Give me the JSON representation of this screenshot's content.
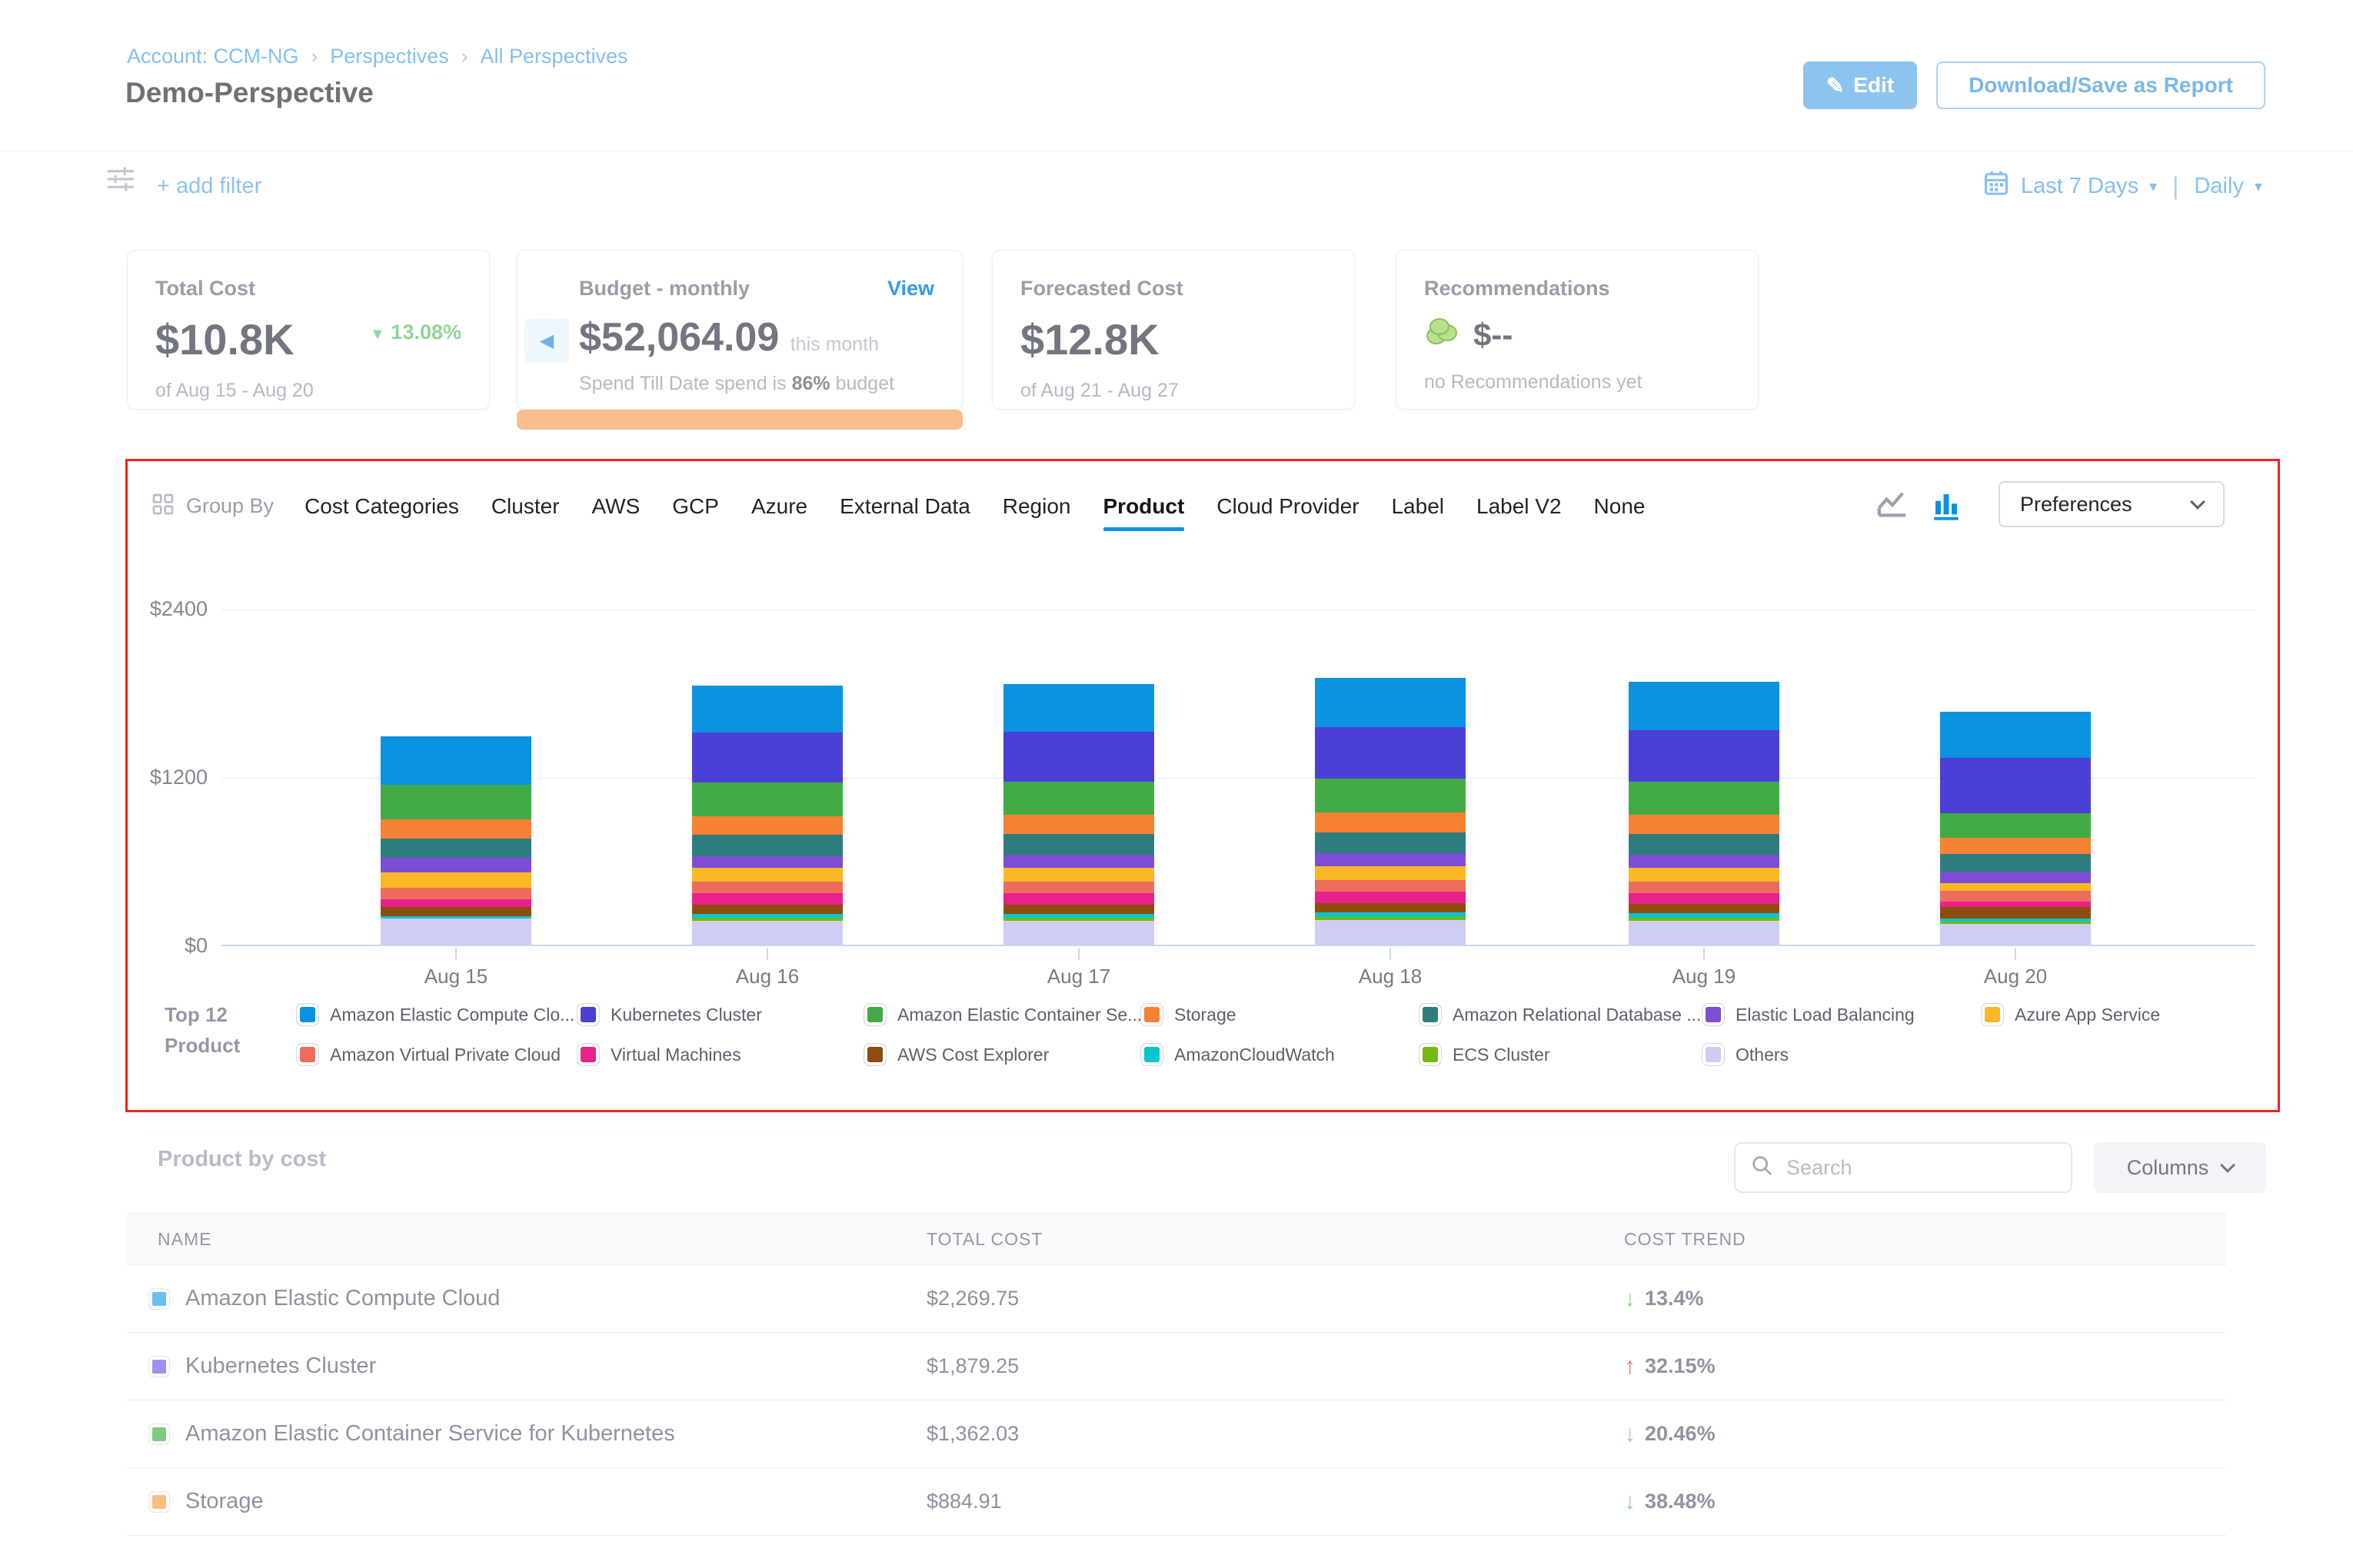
{
  "header": {
    "breadcrumb": [
      "Account: CCM-NG",
      "Perspectives",
      "All Perspectives"
    ],
    "title": "Demo-Perspective",
    "edit_label": "Edit",
    "download_label": "Download/Save as Report"
  },
  "filter_bar": {
    "add_filter_label": "+ add filter",
    "date_range_label": "Last 7 Days",
    "granularity_label": "Daily"
  },
  "summary_cards": {
    "total_cost": {
      "label": "Total Cost",
      "value": "$10.8K",
      "trend_direction": "down",
      "trend_value": "13.08%",
      "period": "of Aug 15 - Aug 20"
    },
    "budget": {
      "label": "Budget - monthly",
      "action_label": "View",
      "value": "$52,064.09",
      "value_suffix": "this month",
      "detail_prefix": "Spend Till Date spend is",
      "detail_percent": "86%",
      "detail_suffix": "budget"
    },
    "forecasted": {
      "label": "Forecasted Cost",
      "value": "$12.8K",
      "period": "of Aug 21 - Aug 27"
    },
    "recommendations": {
      "label": "Recommendations",
      "value": "$--",
      "detail": "no Recommendations yet"
    }
  },
  "group_by": {
    "label": "Group By",
    "tabs": [
      "Cost Categories",
      "Cluster",
      "AWS",
      "GCP",
      "Azure",
      "External Data",
      "Region",
      "Product",
      "Cloud Provider",
      "Label",
      "Label V2",
      "None"
    ],
    "active_tab": "Product"
  },
  "preferences_label": "Preferences",
  "chart_data": {
    "type": "bar",
    "stacked": true,
    "title": "Daily cost grouped by Product",
    "xlabel": "",
    "ylabel": "",
    "ylim": [
      0,
      2400
    ],
    "yticks": [
      {
        "label": "$0",
        "value": 0
      },
      {
        "label": "$1200",
        "value": 1200
      },
      {
        "label": "$2400",
        "value": 2400
      }
    ],
    "grid": true,
    "legend_position": "bottom",
    "categories": [
      "Aug 15",
      "Aug 16",
      "Aug 17",
      "Aug 18",
      "Aug 19",
      "Aug 20"
    ],
    "series": [
      {
        "name": "Amazon Elastic Compute Clo...",
        "color": "#0b92e1",
        "values": [
          346,
          335,
          340,
          350,
          345,
          330
        ]
      },
      {
        "name": "Kubernetes Cluster",
        "color": "#4b3fd6",
        "values": [
          0,
          357,
          360,
          370,
          365,
          390
        ]
      },
      {
        "name": "Amazon Elastic Container Se...",
        "color": "#42ab45",
        "values": [
          243,
          238,
          235,
          240,
          238,
          180
        ]
      },
      {
        "name": "Storage",
        "color": "#f78133",
        "values": [
          140,
          135,
          138,
          140,
          138,
          113
        ]
      },
      {
        "name": "Amazon Relational Database ...",
        "color": "#2d7d7e",
        "values": [
          135,
          151,
          148,
          150,
          148,
          126
        ]
      },
      {
        "name": "Elastic Load Balancing",
        "color": "#7d4dd3",
        "values": [
          103,
          86,
          90,
          92,
          90,
          81
        ]
      },
      {
        "name": "Azure App Service",
        "color": "#fbb824",
        "values": [
          113,
          97,
          100,
          100,
          98,
          54
        ]
      },
      {
        "name": "Amazon Virtual Private Cloud",
        "color": "#ed6c5c",
        "values": [
          81,
          81,
          82,
          84,
          82,
          81
        ]
      },
      {
        "name": "Virtual Machines",
        "color": "#e8228a",
        "values": [
          54,
          81,
          80,
          82,
          80,
          36
        ]
      },
      {
        "name": "AWS Cost Explorer",
        "color": "#8d4d0e",
        "values": [
          65,
          65,
          66,
          66,
          66,
          81
        ]
      },
      {
        "name": "AmazonCloudWatch",
        "color": "#06c5ce",
        "values": [
          16,
          32,
          30,
          31,
          30,
          22
        ]
      },
      {
        "name": "ECS Cluster",
        "color": "#76b90e",
        "values": [
          0,
          22,
          21,
          22,
          21,
          18
        ]
      },
      {
        "name": "Others",
        "color": "#cdcdf6",
        "values": [
          189,
          168,
          170,
          175,
          172,
          148
        ]
      }
    ]
  },
  "legend": {
    "title_line1": "Top 12",
    "title_line2": "Product"
  },
  "table": {
    "title": "Product by cost",
    "search_placeholder": "Search",
    "columns_label": "Columns",
    "headers": [
      "NAME",
      "TOTAL COST",
      "COST TREND"
    ],
    "rows": [
      {
        "name": "Amazon Elastic Compute Cloud",
        "swatch": "#63c3ee",
        "total_cost": "$2,269.75",
        "trend_direction": "down",
        "trend_value": "13.4%"
      },
      {
        "name": "Kubernetes Cluster",
        "swatch": "#9b90f0",
        "total_cost": "$1,879.25",
        "trend_direction": "up",
        "trend_value": "32.15%"
      },
      {
        "name": "Amazon Elastic Container Service for Kubernetes",
        "swatch": "#7ecb82",
        "total_cost": "$1,362.03",
        "trend_direction": "down",
        "trend_value": "20.46%"
      },
      {
        "name": "Storage",
        "swatch": "#fcbd80",
        "total_cost": "$884.91",
        "trend_direction": "down",
        "trend_value": "38.48%"
      }
    ]
  },
  "annotation": {
    "color": "#ee2222"
  }
}
